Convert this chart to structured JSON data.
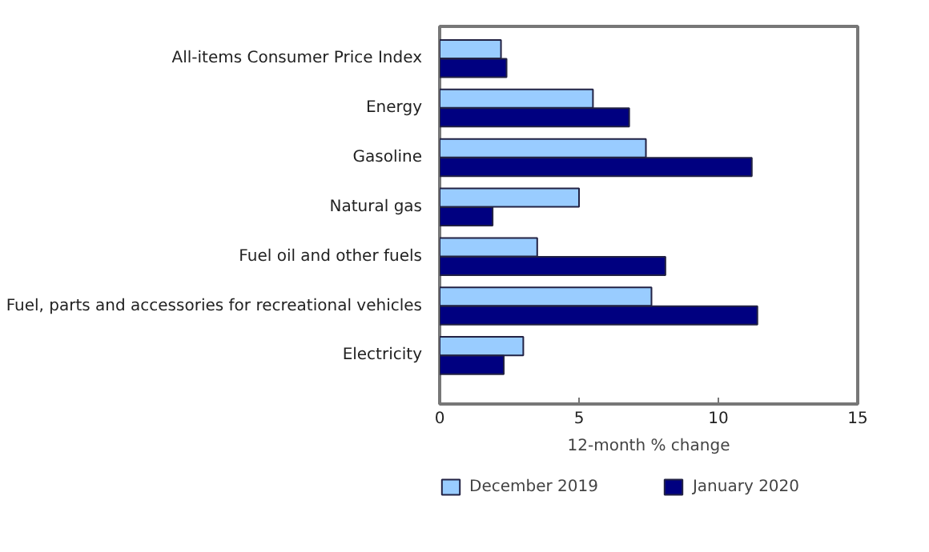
{
  "chart_data": {
    "type": "bar",
    "orientation": "horizontal",
    "xlabel": "12-month % change",
    "categories": [
      "All-items Consumer Price Index",
      "Energy",
      "Gasoline",
      "Natural gas",
      "Fuel oil and other fuels",
      "Fuel, parts and accessories for recreational vehicles",
      "Electricity"
    ],
    "series": [
      {
        "name": "December 2019",
        "color": "#99ccff",
        "values": [
          2.2,
          5.5,
          7.4,
          5.0,
          3.5,
          7.6,
          3.0
        ]
      },
      {
        "name": "January 2020",
        "color": "#000080",
        "values": [
          2.4,
          6.8,
          11.2,
          1.9,
          8.1,
          11.4,
          2.3
        ]
      }
    ],
    "xlim": [
      0,
      15
    ],
    "xticks": [
      0,
      5,
      10,
      15
    ],
    "grid": false,
    "legend": "bottom"
  }
}
